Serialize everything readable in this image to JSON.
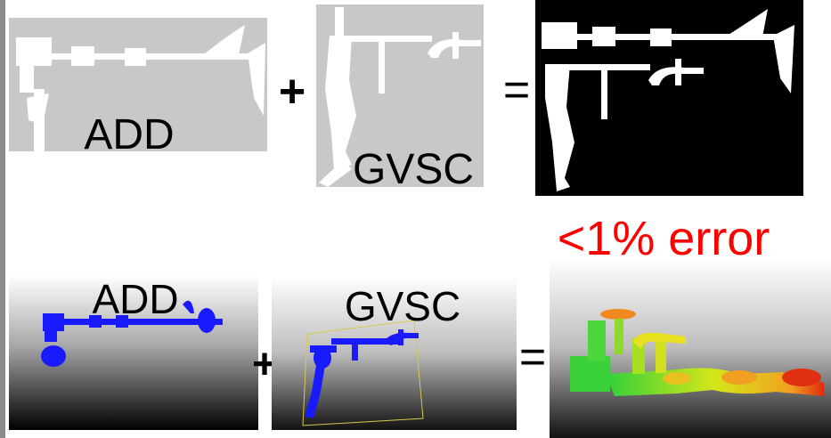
{
  "top_row": {
    "left_label": "ADD",
    "plus": "+",
    "middle_label": "GVSC",
    "equals": "="
  },
  "error_note": "<1% error",
  "bottom_row": {
    "left_label": "ADD",
    "plus": "+",
    "middle_label": "GVSC",
    "equals": "="
  }
}
